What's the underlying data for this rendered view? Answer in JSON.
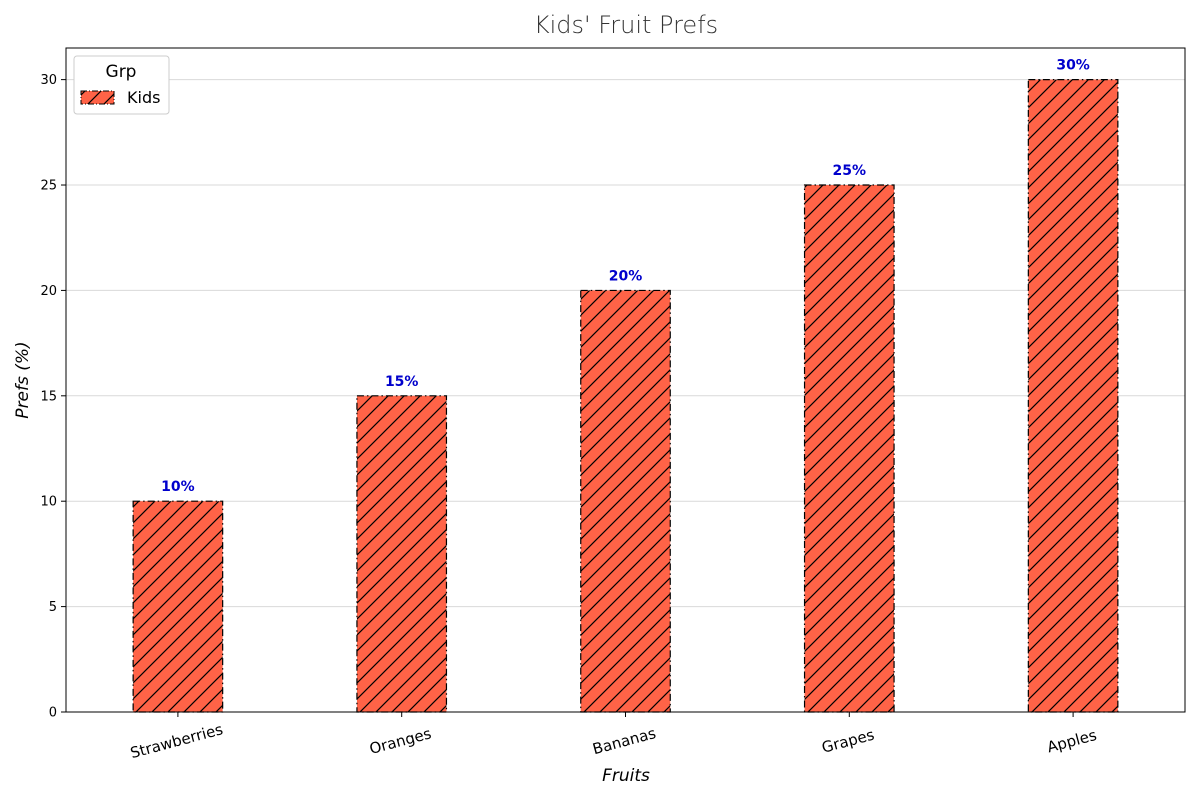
{
  "chart_data": {
    "type": "bar",
    "title": "Kids' Fruit Prefs",
    "xlabel": "Fruits",
    "ylabel": "Prefs (%)",
    "categories": [
      "Strawberries",
      "Oranges",
      "Bananas",
      "Grapes",
      "Apples"
    ],
    "series": [
      {
        "name": "Kids",
        "values": [
          10,
          15,
          20,
          25,
          30
        ]
      }
    ],
    "data_labels": [
      "10%",
      "15%",
      "20%",
      "25%",
      "30%"
    ],
    "ylim": [
      0,
      31.5
    ],
    "yticks": [
      0,
      5,
      10,
      15,
      20,
      25,
      30
    ],
    "grid": "y",
    "legend": {
      "title": "Grp",
      "placement": "top-left"
    },
    "bar_color": "#ff6347",
    "bar_edge_color": "#000000",
    "bar_hatch": "diagonal",
    "data_label_color": "#0000cc",
    "grid_color": "#d9d9d9"
  }
}
